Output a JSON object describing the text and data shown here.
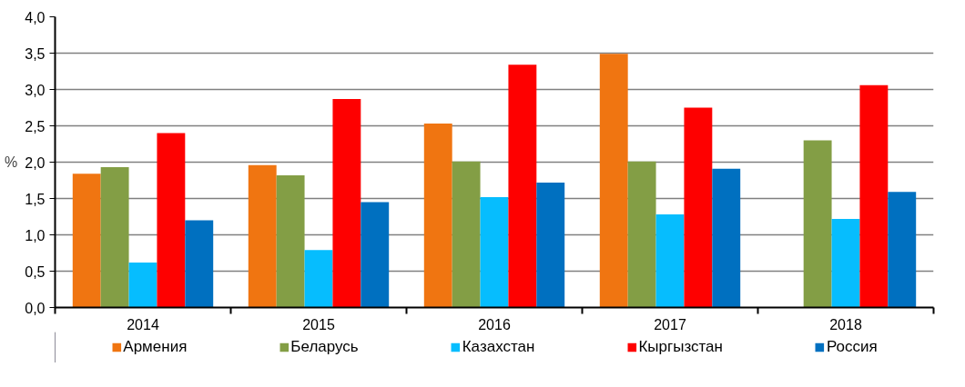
{
  "chart_data": {
    "type": "bar",
    "ylabel": "%",
    "categories": [
      "2014",
      "2015",
      "2016",
      "2017",
      "2018"
    ],
    "series": [
      {
        "name": "Армения",
        "color": "#f07511",
        "values": [
          1.84,
          1.96,
          2.53,
          3.49,
          null
        ]
      },
      {
        "name": "Беларусь",
        "color": "#839e45",
        "values": [
          1.93,
          1.82,
          2.01,
          2.01,
          2.3
        ]
      },
      {
        "name": "Казахстан",
        "color": "#06bdfe",
        "values": [
          0.62,
          0.79,
          1.52,
          1.28,
          1.22
        ]
      },
      {
        "name": "Кыргызстан",
        "color": "#fe0000",
        "values": [
          2.4,
          2.87,
          3.34,
          2.75,
          3.06
        ]
      },
      {
        "name": "Россия",
        "color": "#0070c0",
        "values": [
          1.2,
          1.45,
          1.72,
          1.91,
          1.59
        ]
      }
    ],
    "ylim": [
      0,
      4
    ],
    "yticks": [
      {
        "value": 0,
        "label": "0,0"
      },
      {
        "value": 0.5,
        "label": "0,5"
      },
      {
        "value": 1,
        "label": "1,0"
      },
      {
        "value": 1.5,
        "label": "1,5"
      },
      {
        "value": 2,
        "label": "2,0"
      },
      {
        "value": 2.5,
        "label": "2,5"
      },
      {
        "value": 3,
        "label": "3,0"
      },
      {
        "value": 3.5,
        "label": "3,5"
      },
      {
        "value": 4,
        "label": "4,0"
      }
    ],
    "grid": "y",
    "legend": "bottom"
  }
}
